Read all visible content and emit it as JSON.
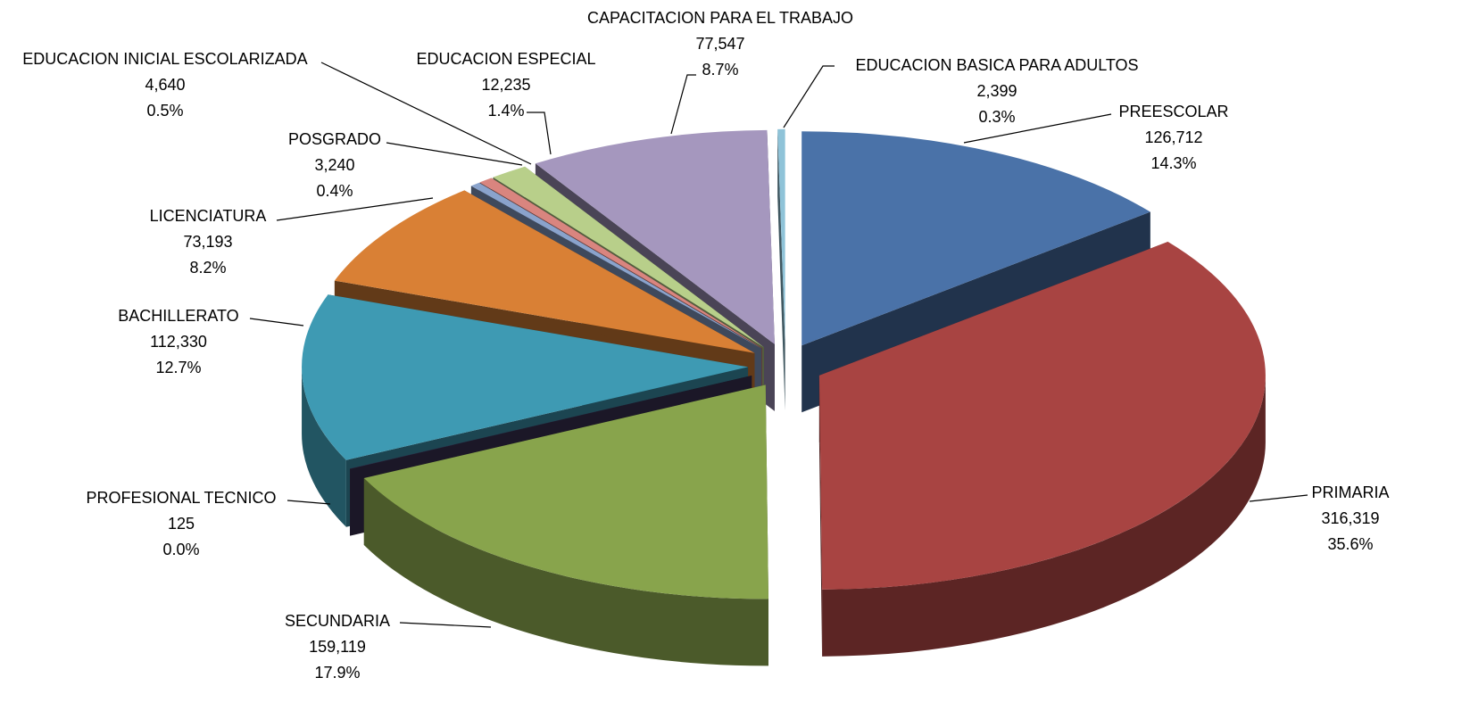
{
  "chart_data": {
    "type": "pie3d",
    "categories": [
      "PREESCOLAR",
      "PRIMARIA",
      "SECUNDARIA",
      "PROFESIONAL TECNICO",
      "BACHILLERATO",
      "LICENCIATURA",
      "POSGRADO",
      "EDUCACION INICIAL ESCOLARIZADA",
      "EDUCACION ESPECIAL",
      "CAPACITACION PARA EL TRABAJO",
      "EDUCACION BASICA PARA ADULTOS"
    ],
    "values": [
      126712,
      316319,
      159119,
      125,
      112330,
      73193,
      3240,
      4640,
      12235,
      77547,
      2399
    ],
    "value_labels": [
      "126,712",
      "316,319",
      "159,119",
      "125",
      "112,330",
      "73,193",
      "3,240",
      "4,640",
      "12,235",
      "77,547",
      "2,399"
    ],
    "percents": [
      14.3,
      35.6,
      17.9,
      0.0,
      12.7,
      8.2,
      0.4,
      0.5,
      1.4,
      8.7,
      0.3
    ],
    "percent_labels": [
      "14.3%",
      "35.6%",
      "17.9%",
      "0.0%",
      "12.7%",
      "8.2%",
      "0.4%",
      "0.5%",
      "1.4%",
      "8.7%",
      "0.3%"
    ],
    "colors": [
      "#4a72a8",
      "#a84442",
      "#88a44c",
      "#3d3256",
      "#3e9ab3",
      "#d98035",
      "#8aa3cc",
      "#d9857f",
      "#b8cf8a",
      "#a597be",
      "#8fc3d8"
    ]
  }
}
